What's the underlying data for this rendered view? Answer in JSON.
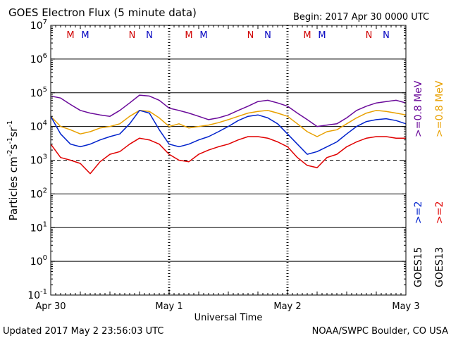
{
  "header": {
    "title": "GOES Electron Flux (5 minute data)",
    "begin": "Begin: 2017 Apr 30 0000 UTC"
  },
  "footer": {
    "updated": "Updated 2017 May  2 23:56:03 UTC",
    "source": "NOAA/SWPC Boulder, CO USA"
  },
  "chart_data": {
    "type": "line",
    "title": "GOES Electron Flux (5 minute data)",
    "xlabel": "Universal Time",
    "ylabel": "Particles cm-2s-1sr-1",
    "y_scale": "log",
    "ylim": [
      0.1,
      10000000
    ],
    "y_ticks": [
      {
        "value": 10000000,
        "base": "10",
        "exp": "7"
      },
      {
        "value": 1000000,
        "base": "10",
        "exp": "6"
      },
      {
        "value": 100000,
        "base": "10",
        "exp": "5"
      },
      {
        "value": 10000,
        "base": "10",
        "exp": "4"
      },
      {
        "value": 1000,
        "base": "10",
        "exp": "3"
      },
      {
        "value": 100,
        "base": "10",
        "exp": "2"
      },
      {
        "value": 10,
        "base": "10",
        "exp": "1"
      },
      {
        "value": 1,
        "base": "10",
        "exp": "0"
      },
      {
        "value": 0.1,
        "base": "10",
        "exp": "-1"
      }
    ],
    "xlim": [
      "2017-04-30 00:00",
      "2017-05-03 00:00"
    ],
    "x_ticks": [
      {
        "value": "2017-04-30 00:00",
        "label": "Apr 30"
      },
      {
        "value": "2017-05-01 00:00",
        "label": "May 1"
      },
      {
        "value": "2017-05-02 00:00",
        "label": "May 2"
      },
      {
        "value": "2017-05-03 00:00",
        "label": "May 3"
      }
    ],
    "reference_line": {
      "value": 1000,
      "style": "dashed"
    },
    "grid": true,
    "markers": [
      {
        "label": "M",
        "time": "2017-04-30 04:00",
        "color": "#d00000"
      },
      {
        "label": "M",
        "time": "2017-04-30 07:00",
        "color": "#0000c0"
      },
      {
        "label": "N",
        "time": "2017-04-30 16:30",
        "color": "#d00000"
      },
      {
        "label": "N",
        "time": "2017-04-30 20:00",
        "color": "#0000c0"
      },
      {
        "label": "M",
        "time": "2017-05-01 04:00",
        "color": "#d00000"
      },
      {
        "label": "M",
        "time": "2017-05-01 07:00",
        "color": "#0000c0"
      },
      {
        "label": "N",
        "time": "2017-05-01 16:30",
        "color": "#d00000"
      },
      {
        "label": "N",
        "time": "2017-05-01 20:00",
        "color": "#0000c0"
      },
      {
        "label": "M",
        "time": "2017-05-02 04:00",
        "color": "#d00000"
      },
      {
        "label": "M",
        "time": "2017-05-02 07:00",
        "color": "#0000c0"
      },
      {
        "label": "N",
        "time": "2017-05-02 16:30",
        "color": "#d00000"
      },
      {
        "label": "N",
        "time": "2017-05-02 20:00",
        "color": "#0000c0"
      }
    ],
    "legend": [
      {
        "satellite": "GOES15",
        "items": [
          {
            "label": ">=0.8 MeV",
            "color": "#6a0a9a"
          },
          {
            "label": ">=2",
            "color": "#0022cc"
          }
        ]
      },
      {
        "satellite": "GOES13",
        "items": [
          {
            "label": ">=0.8 MeV",
            "color": "#e8a000"
          },
          {
            "label": ">=2",
            "color": "#e00000"
          }
        ]
      }
    ],
    "series": [
      {
        "name": "GOES15 >=0.8 MeV",
        "color": "#6a0a9a",
        "x": [
          "2017-04-30 00:00",
          "2017-04-30 02:00",
          "2017-04-30 04:00",
          "2017-04-30 06:00",
          "2017-04-30 08:00",
          "2017-04-30 10:00",
          "2017-04-30 12:00",
          "2017-04-30 14:00",
          "2017-04-30 16:00",
          "2017-04-30 18:00",
          "2017-04-30 20:00",
          "2017-04-30 22:00",
          "2017-05-01 00:00",
          "2017-05-01 02:00",
          "2017-05-01 04:00",
          "2017-05-01 06:00",
          "2017-05-01 08:00",
          "2017-05-01 10:00",
          "2017-05-01 12:00",
          "2017-05-01 14:00",
          "2017-05-01 16:00",
          "2017-05-01 18:00",
          "2017-05-01 20:00",
          "2017-05-01 22:00",
          "2017-05-02 00:00",
          "2017-05-02 02:00",
          "2017-05-02 04:00",
          "2017-05-02 06:00",
          "2017-05-02 08:00",
          "2017-05-02 10:00",
          "2017-05-02 12:00",
          "2017-05-02 14:00",
          "2017-05-02 16:00",
          "2017-05-02 18:00",
          "2017-05-02 20:00",
          "2017-05-02 22:00",
          "2017-05-03 00:00"
        ],
        "values": [
          80000,
          70000,
          45000,
          30000,
          25000,
          22000,
          20000,
          30000,
          50000,
          85000,
          80000,
          60000,
          35000,
          30000,
          25000,
          20000,
          16000,
          18000,
          22000,
          30000,
          40000,
          55000,
          60000,
          50000,
          40000,
          25000,
          16000,
          10000,
          11000,
          12000,
          18000,
          30000,
          40000,
          50000,
          55000,
          60000,
          50000
        ]
      },
      {
        "name": "GOES13 >=0.8 MeV",
        "color": "#e8a000",
        "x": [
          "2017-04-30 00:00",
          "2017-04-30 02:00",
          "2017-04-30 04:00",
          "2017-04-30 06:00",
          "2017-04-30 08:00",
          "2017-04-30 10:00",
          "2017-04-30 12:00",
          "2017-04-30 14:00",
          "2017-04-30 16:00",
          "2017-04-30 18:00",
          "2017-04-30 20:00",
          "2017-04-30 22:00",
          "2017-05-01 00:00",
          "2017-05-01 02:00",
          "2017-05-01 04:00",
          "2017-05-01 06:00",
          "2017-05-01 08:00",
          "2017-05-01 10:00",
          "2017-05-01 12:00",
          "2017-05-01 14:00",
          "2017-05-01 16:00",
          "2017-05-01 18:00",
          "2017-05-01 20:00",
          "2017-05-01 22:00",
          "2017-05-02 00:00",
          "2017-05-02 02:00",
          "2017-05-02 04:00",
          "2017-05-02 06:00",
          "2017-05-02 08:00",
          "2017-05-02 10:00",
          "2017-05-02 12:00",
          "2017-05-02 14:00",
          "2017-05-02 16:00",
          "2017-05-02 18:00",
          "2017-05-02 20:00",
          "2017-05-02 22:00",
          "2017-05-03 00:00"
        ],
        "values": [
          20000,
          10000,
          8000,
          6000,
          7000,
          9000,
          10000,
          12000,
          20000,
          30000,
          28000,
          18000,
          10000,
          12000,
          9000,
          10000,
          11000,
          13000,
          16000,
          20000,
          25000,
          28000,
          30000,
          25000,
          20000,
          12000,
          7000,
          5000,
          7000,
          8000,
          12000,
          18000,
          25000,
          30000,
          28000,
          25000,
          22000
        ]
      },
      {
        "name": "GOES15 >=2",
        "color": "#0022cc",
        "x": [
          "2017-04-30 00:00",
          "2017-04-30 02:00",
          "2017-04-30 04:00",
          "2017-04-30 06:00",
          "2017-04-30 08:00",
          "2017-04-30 10:00",
          "2017-04-30 12:00",
          "2017-04-30 14:00",
          "2017-04-30 16:00",
          "2017-04-30 18:00",
          "2017-04-30 20:00",
          "2017-04-30 22:00",
          "2017-05-01 00:00",
          "2017-05-01 02:00",
          "2017-05-01 04:00",
          "2017-05-01 06:00",
          "2017-05-01 08:00",
          "2017-05-01 10:00",
          "2017-05-01 12:00",
          "2017-05-01 14:00",
          "2017-05-01 16:00",
          "2017-05-01 18:00",
          "2017-05-01 20:00",
          "2017-05-01 22:00",
          "2017-05-02 00:00",
          "2017-05-02 02:00",
          "2017-05-02 04:00",
          "2017-05-02 06:00",
          "2017-05-02 08:00",
          "2017-05-02 10:00",
          "2017-05-02 12:00",
          "2017-05-02 14:00",
          "2017-05-02 16:00",
          "2017-05-02 18:00",
          "2017-05-02 20:00",
          "2017-05-02 22:00",
          "2017-05-03 00:00"
        ],
        "values": [
          20000,
          6000,
          3000,
          2500,
          3000,
          4000,
          5000,
          6000,
          12000,
          30000,
          25000,
          8000,
          3000,
          2500,
          3000,
          4000,
          5000,
          7000,
          10000,
          15000,
          20000,
          22000,
          18000,
          12000,
          6000,
          3000,
          1500,
          1800,
          2500,
          3500,
          6000,
          10000,
          14000,
          16000,
          17000,
          15000,
          12000
        ]
      },
      {
        "name": "GOES13 >=2",
        "color": "#e00000",
        "x": [
          "2017-04-30 00:00",
          "2017-04-30 02:00",
          "2017-04-30 04:00",
          "2017-04-30 06:00",
          "2017-04-30 08:00",
          "2017-04-30 10:00",
          "2017-04-30 12:00",
          "2017-04-30 14:00",
          "2017-04-30 16:00",
          "2017-04-30 18:00",
          "2017-04-30 20:00",
          "2017-04-30 22:00",
          "2017-05-01 00:00",
          "2017-05-01 02:00",
          "2017-05-01 04:00",
          "2017-05-01 06:00",
          "2017-05-01 08:00",
          "2017-05-01 10:00",
          "2017-05-01 12:00",
          "2017-05-01 14:00",
          "2017-05-01 16:00",
          "2017-05-01 18:00",
          "2017-05-01 20:00",
          "2017-05-01 22:00",
          "2017-05-02 00:00",
          "2017-05-02 02:00",
          "2017-05-02 04:00",
          "2017-05-02 06:00",
          "2017-05-02 08:00",
          "2017-05-02 10:00",
          "2017-05-02 12:00",
          "2017-05-02 14:00",
          "2017-05-02 16:00",
          "2017-05-02 18:00",
          "2017-05-02 20:00",
          "2017-05-02 22:00",
          "2017-05-03 00:00"
        ],
        "values": [
          3000,
          1200,
          1000,
          800,
          400,
          900,
          1500,
          1800,
          3000,
          4500,
          4000,
          3000,
          1500,
          1000,
          900,
          1500,
          2000,
          2500,
          3000,
          4000,
          5000,
          5000,
          4500,
          3500,
          2500,
          1200,
          700,
          600,
          1200,
          1500,
          2500,
          3500,
          4500,
          5000,
          5000,
          4500,
          4500
        ]
      }
    ]
  }
}
